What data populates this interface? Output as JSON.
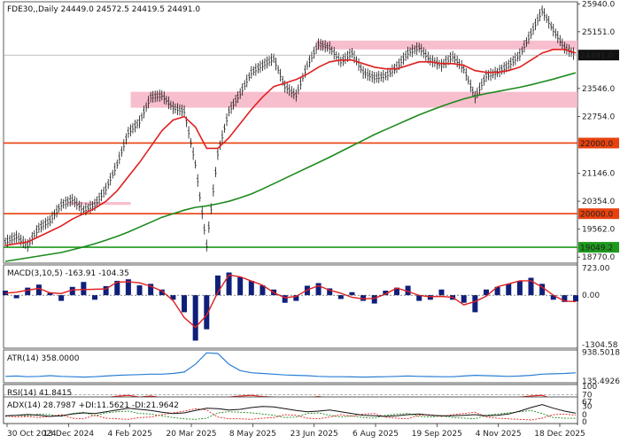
{
  "chart_data": [
    {
      "type": "line",
      "panel": "price",
      "header": "FDE30,,Daily  24449.0 24572.5 24419.5 24491.0",
      "ohlc_note": "daily OHLC bars",
      "ylim": [
        18600,
        26000
      ],
      "y_ticks": [
        {
          "value": 25940,
          "label": "25940.0"
        },
        {
          "value": 25151,
          "label": "25151.0"
        },
        {
          "value": 23546,
          "label": "23546.0"
        },
        {
          "value": 22754,
          "label": "22754.0"
        },
        {
          "value": 21146,
          "label": "21146.0"
        },
        {
          "value": 20354,
          "label": "20354.0"
        },
        {
          "value": 19562,
          "label": "19562.0"
        },
        {
          "value": 18770,
          "label": "18770.0"
        }
      ],
      "price_marker": {
        "value": 24491,
        "label": "24491.0",
        "color": "#111111"
      },
      "levels": [
        {
          "value": 22000,
          "label": "22000.0",
          "color": "#e8410f"
        },
        {
          "value": 20000,
          "label": "20000.0",
          "color": "#e8410f"
        },
        {
          "value": 19049.2,
          "label": "19049.2",
          "color": "#1d9a1d"
        }
      ],
      "zones": [
        {
          "from": 24650,
          "to": 24900,
          "x_start": "23 Jun 2025",
          "color": "#f6b7c8"
        },
        {
          "from": 23000,
          "to": 23450,
          "x_start": "4 Feb 2025",
          "color": "#f6b7c8"
        },
        {
          "from": 20250,
          "to": 20330,
          "x_start": "13 Dec 2024",
          "x_end": "4 Feb 2025",
          "color": "#f6b7c8"
        }
      ],
      "x_labels": [
        "30 Oct 2024",
        "13 Dec 2024",
        "4 Feb 2025",
        "20 Mar 2025",
        "8 May 2025",
        "23 Jun 2025",
        "6 Aug 2025",
        "19 Sep 2025",
        "4 Nov 2025",
        "18 Dec 2025"
      ],
      "series": [
        {
          "color": "#111111",
          "values": [
            19200,
            19350,
            19100,
            19600,
            19800,
            20250,
            20400,
            20100,
            20250,
            20700,
            21400,
            22300,
            22600,
            23300,
            23350,
            23000,
            22900,
            21400,
            19100,
            21700,
            22900,
            23400,
            24000,
            24200,
            24400,
            23600,
            23350,
            24200,
            24800,
            24700,
            24300,
            24550,
            24000,
            23850,
            23900,
            24150,
            24550,
            24700,
            24350,
            24200,
            24450,
            24100,
            23300,
            23900,
            24000,
            24200,
            24500,
            25100,
            25750,
            25200,
            24700,
            24491
          ]
        },
        {
          "color": "#e02020",
          "values": [
            19100,
            19150,
            19200,
            19350,
            19500,
            19650,
            19850,
            20000,
            20150,
            20350,
            20650,
            21050,
            21450,
            21900,
            22350,
            22650,
            22750,
            22450,
            21850,
            21850,
            22150,
            22550,
            22950,
            23300,
            23600,
            23700,
            23800,
            23950,
            24150,
            24300,
            24350,
            24350,
            24250,
            24150,
            24100,
            24100,
            24200,
            24300,
            24300,
            24250,
            24250,
            24200,
            24050,
            24000,
            24000,
            24050,
            24150,
            24350,
            24550,
            24650,
            24650,
            24550
          ]
        },
        {
          "color": "#1d8a1d",
          "values": [
            18650,
            18700,
            18750,
            18800,
            18850,
            18900,
            18980,
            19060,
            19150,
            19250,
            19360,
            19480,
            19620,
            19760,
            19900,
            20000,
            20100,
            20180,
            20220,
            20280,
            20350,
            20450,
            20560,
            20700,
            20850,
            21000,
            21150,
            21300,
            21450,
            21600,
            21760,
            21920,
            22080,
            22240,
            22380,
            22520,
            22660,
            22800,
            22920,
            23040,
            23150,
            23250,
            23330,
            23400,
            23460,
            23520,
            23580,
            23650,
            23730,
            23810,
            23900,
            23990
          ]
        }
      ]
    },
    {
      "type": "bar",
      "panel": "macd",
      "header": "MACD(3,10,5) -163.91 -104.35",
      "y_ticks": [
        {
          "value": 723,
          "label": "723.00"
        },
        {
          "value": 0,
          "label": "0.00"
        },
        {
          "value": -1304.58,
          "label": "-1304.58"
        }
      ],
      "ylim": [
        -1400,
        800
      ],
      "hist_color": "#0f1f7a",
      "signal_color": "#e02020",
      "values": [
        120,
        -80,
        200,
        280,
        60,
        -150,
        220,
        350,
        -120,
        240,
        380,
        420,
        260,
        300,
        150,
        -120,
        -450,
        -1200,
        -900,
        520,
        600,
        480,
        380,
        260,
        150,
        -200,
        -150,
        250,
        320,
        180,
        -100,
        80,
        -150,
        -220,
        120,
        200,
        250,
        -150,
        -120,
        150,
        -120,
        -200,
        -450,
        150,
        220,
        300,
        380,
        460,
        300,
        -120,
        -180,
        -163.91
      ]
    },
    {
      "type": "line",
      "panel": "atr",
      "header": "ATR(14) 358.0000",
      "y_ticks": [
        {
          "value": 938.5018,
          "label": "938.5018"
        },
        {
          "value": 135.4926,
          "label": "135.4926"
        }
      ],
      "ylim": [
        80,
        1000
      ],
      "series": [
        {
          "color": "#2a7fd4",
          "values": [
            260,
            270,
            250,
            260,
            280,
            260,
            250,
            240,
            250,
            270,
            290,
            300,
            310,
            320,
            320,
            340,
            380,
            600,
            920,
            900,
            600,
            420,
            360,
            340,
            320,
            300,
            290,
            280,
            260,
            250,
            250,
            245,
            240,
            245,
            250,
            260,
            270,
            260,
            255,
            250,
            250,
            270,
            290,
            280,
            270,
            260,
            270,
            290,
            320,
            330,
            340,
            358
          ]
        }
      ]
    },
    {
      "type": "line",
      "panel": "rsi",
      "header": "RSI(14) 41.8415",
      "y_ticks": [
        {
          "value": 100,
          "label": "100"
        },
        {
          "value": 70,
          "label": "70"
        },
        {
          "value": 30,
          "label": "30"
        },
        {
          "value": 0,
          "label": "0"
        }
      ],
      "ylim": [
        0,
        100
      ],
      "levels": [
        70,
        30
      ],
      "series": [
        {
          "color": "#e02020",
          "values": [
            48,
            45,
            52,
            55,
            50,
            56,
            58,
            52,
            55,
            60,
            65,
            68,
            62,
            66,
            60,
            50,
            42,
            30,
            28,
            55,
            62,
            66,
            68,
            64,
            62,
            52,
            50,
            60,
            64,
            58,
            50,
            54,
            48,
            47,
            52,
            56,
            60,
            55,
            50,
            52,
            54,
            50,
            44,
            52,
            55,
            58,
            62,
            66,
            68,
            55,
            48,
            41.8415
          ]
        }
      ]
    },
    {
      "type": "line",
      "panel": "adx",
      "header": "ADX(14) 28.7987 +DI:11.5621 -DI:21.9642",
      "y_ticks": [
        {
          "value": 67,
          "label": "67"
        },
        {
          "value": 0,
          "label": "0"
        }
      ],
      "ylim": [
        0,
        75
      ],
      "series": [
        {
          "color": "#111111",
          "values": [
            20,
            22,
            25,
            22,
            18,
            20,
            26,
            30,
            28,
            34,
            40,
            46,
            42,
            38,
            32,
            28,
            30,
            38,
            46,
            44,
            40,
            42,
            48,
            52,
            50,
            44,
            38,
            34,
            36,
            40,
            34,
            28,
            22,
            20,
            18,
            20,
            24,
            26,
            22,
            20,
            20,
            22,
            24,
            20,
            22,
            26,
            36,
            48,
            58,
            46,
            36,
            28.7987
          ]
        },
        {
          "color": "#1d8a1d",
          "values": [
            18,
            22,
            20,
            26,
            24,
            18,
            28,
            32,
            20,
            30,
            34,
            36,
            28,
            26,
            20,
            14,
            10,
            8,
            12,
            30,
            34,
            32,
            30,
            26,
            22,
            14,
            16,
            28,
            30,
            22,
            16,
            20,
            14,
            12,
            22,
            26,
            28,
            18,
            16,
            20,
            14,
            12,
            10,
            22,
            26,
            30,
            34,
            38,
            28,
            14,
            12,
            11.5621
          ]
        },
        {
          "color": "#e02020",
          "values": [
            20,
            16,
            18,
            14,
            18,
            24,
            12,
            10,
            22,
            12,
            10,
            8,
            14,
            16,
            24,
            30,
            36,
            44,
            40,
            16,
            10,
            10,
            8,
            12,
            14,
            24,
            22,
            12,
            10,
            16,
            24,
            18,
            26,
            28,
            16,
            12,
            10,
            22,
            24,
            18,
            24,
            28,
            32,
            16,
            12,
            10,
            8,
            6,
            12,
            24,
            26,
            21.9642
          ]
        }
      ]
    }
  ]
}
